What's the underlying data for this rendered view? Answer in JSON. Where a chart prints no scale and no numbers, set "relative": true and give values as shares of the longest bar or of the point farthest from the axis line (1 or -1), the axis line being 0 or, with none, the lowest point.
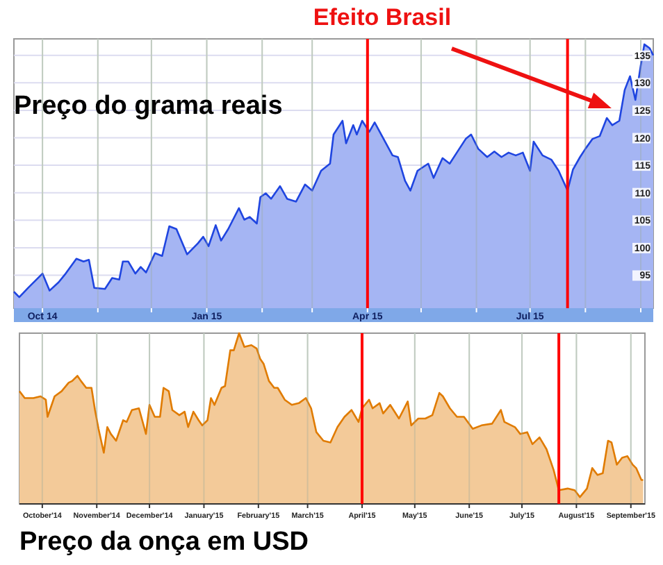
{
  "chart_data": [
    {
      "type": "area",
      "title": "Preço do grama reais",
      "xlim": [
        "2014-09-15",
        "2015-09-08"
      ],
      "ylim": [
        89,
        138
      ],
      "yticks": [
        95,
        100,
        105,
        110,
        115,
        120,
        125,
        130,
        135
      ],
      "xticks": [
        {
          "value": "2014-10-01",
          "label": "Oct 14"
        },
        {
          "value": "2014-11-01",
          "label": null
        },
        {
          "value": "2014-12-01",
          "label": null
        },
        {
          "value": "2015-01-01",
          "label": "Jan 15"
        },
        {
          "value": "2015-02-01",
          "label": null
        },
        {
          "value": "2015-03-01",
          "label": null
        },
        {
          "value": "2015-04-01",
          "label": "Apr 15"
        },
        {
          "value": "2015-05-01",
          "label": null
        },
        {
          "value": "2015-06-01",
          "label": null
        },
        {
          "value": "2015-07-01",
          "label": "Jul 15"
        },
        {
          "value": "2015-08-01",
          "label": null
        },
        {
          "value": "2015-09-01",
          "label": null
        }
      ],
      "grid": true,
      "series": [
        {
          "color": "#1f45e0",
          "x": [
            "2014-09-15",
            "2014-09-18",
            "2014-09-23",
            "2014-10-01",
            "2014-10-05",
            "2014-10-10",
            "2014-10-14",
            "2014-10-20",
            "2014-10-24",
            "2014-10-27",
            "2014-10-30",
            "2014-11-05",
            "2014-11-09",
            "2014-11-13",
            "2014-11-15",
            "2014-11-18",
            "2014-11-22",
            "2014-11-25",
            "2014-11-28",
            "2014-12-03",
            "2014-12-07",
            "2014-12-11",
            "2014-12-15",
            "2014-12-21",
            "2014-12-27",
            "2014-12-30",
            "2015-01-02",
            "2015-01-06",
            "2015-01-09",
            "2015-01-13",
            "2015-01-19",
            "2015-01-22",
            "2015-01-25",
            "2015-01-29",
            "2015-01-31",
            "2015-02-03",
            "2015-02-06",
            "2015-02-11",
            "2015-02-15",
            "2015-02-20",
            "2015-02-25",
            "2015-03-01",
            "2015-03-06",
            "2015-03-11",
            "2015-03-13",
            "2015-03-18",
            "2015-03-20",
            "2015-03-24",
            "2015-03-26",
            "2015-03-29",
            "2015-04-02",
            "2015-04-05",
            "2015-04-10",
            "2015-04-15",
            "2015-04-18",
            "2015-04-22",
            "2015-04-25",
            "2015-04-29",
            "2015-05-05",
            "2015-05-08",
            "2015-05-13",
            "2015-05-17",
            "2015-05-21",
            "2015-05-26",
            "2015-05-29",
            "2015-06-02",
            "2015-06-07",
            "2015-06-11",
            "2015-06-15",
            "2015-06-19",
            "2015-06-23",
            "2015-06-27",
            "2015-07-01",
            "2015-07-03",
            "2015-07-08",
            "2015-07-13",
            "2015-07-17",
            "2015-07-22",
            "2015-07-25",
            "2015-07-29",
            "2015-08-01",
            "2015-08-05",
            "2015-08-09",
            "2015-08-13",
            "2015-08-16",
            "2015-08-20",
            "2015-08-23",
            "2015-08-26",
            "2015-08-29",
            "2015-09-01",
            "2015-09-03",
            "2015-09-06",
            "2015-09-08"
          ],
          "values": [
            92,
            91,
            92.7,
            95.3,
            92.2,
            93.7,
            95.3,
            98,
            97.5,
            97.8,
            92.7,
            92.5,
            94.5,
            94.2,
            97.5,
            97.5,
            95.3,
            96.5,
            95.5,
            99,
            98.5,
            103.9,
            103.4,
            98.8,
            100.8,
            102,
            100.3,
            104.1,
            101.3,
            103.4,
            107.2,
            105.1,
            105.6,
            104.4,
            109.2,
            109.9,
            108.9,
            111.2,
            108.9,
            108.4,
            111.5,
            110.4,
            114,
            115.3,
            120.6,
            123.1,
            119,
            122.3,
            120.6,
            123.1,
            121.1,
            122.8,
            119.8,
            116.8,
            116.5,
            112.2,
            110.4,
            114,
            115.3,
            112.7,
            116.3,
            115.3,
            117.3,
            119.8,
            120.6,
            118,
            116.5,
            117.5,
            116.5,
            117.3,
            116.8,
            117.3,
            114,
            119.3,
            116.8,
            116,
            114,
            110.4,
            114.2,
            116.5,
            118,
            119.8,
            120.3,
            123.6,
            122.3,
            123.1,
            128.7,
            131.2,
            126.9,
            133.2,
            137,
            136.3,
            135
          ]
        }
      ],
      "ref_lines": [
        {
          "axis": "x",
          "value": "2015-04-01",
          "color": "#ff0000"
        },
        {
          "axis": "x",
          "value": "2015-07-22",
          "color": "#ff0000"
        }
      ],
      "annotations": [
        "Efeito Brasil"
      ]
    },
    {
      "type": "area",
      "title": "Preço da onça em USD",
      "relative": true,
      "xlim": [
        "2014-09-18",
        "2015-09-09"
      ],
      "xticks": [
        {
          "value": "2014-10-01",
          "label": "October'14"
        },
        {
          "value": "2014-11-01",
          "label": "November'14"
        },
        {
          "value": "2014-12-01",
          "label": "December'14"
        },
        {
          "value": "2015-01-01",
          "label": "January'15"
        },
        {
          "value": "2015-02-01",
          "label": "February'15"
        },
        {
          "value": "2015-03-01",
          "label": "March'15"
        },
        {
          "value": "2015-04-01",
          "label": "April'15"
        },
        {
          "value": "2015-05-01",
          "label": "May'15"
        },
        {
          "value": "2015-06-01",
          "label": "June'15"
        },
        {
          "value": "2015-07-01",
          "label": "July'15"
        },
        {
          "value": "2015-08-01",
          "label": "August'15"
        },
        {
          "value": "2015-09-01",
          "label": "September'15"
        }
      ],
      "grid": "x",
      "series": [
        {
          "color": "#e07b00",
          "x": [
            "2014-09-18",
            "2014-09-21",
            "2014-09-26",
            "2014-09-30",
            "2014-10-03",
            "2014-10-04",
            "2014-10-08",
            "2014-10-12",
            "2014-10-16",
            "2014-10-18",
            "2014-10-21",
            "2014-10-23",
            "2014-10-26",
            "2014-10-29",
            "2014-10-31",
            "2014-11-02",
            "2014-11-05",
            "2014-11-07",
            "2014-11-09",
            "2014-11-12",
            "2014-11-16",
            "2014-11-18",
            "2014-11-21",
            "2014-11-25",
            "2014-11-29",
            "2014-12-01",
            "2014-12-04",
            "2014-12-07",
            "2014-12-09",
            "2014-12-12",
            "2014-12-14",
            "2014-12-18",
            "2014-12-21",
            "2014-12-23",
            "2014-12-26",
            "2014-12-29",
            "2014-12-31",
            "2015-01-03",
            "2015-01-05",
            "2015-01-07",
            "2015-01-11",
            "2015-01-13",
            "2015-01-16",
            "2015-01-18",
            "2015-01-21",
            "2015-01-24",
            "2015-01-28",
            "2015-01-31",
            "2015-02-02",
            "2015-02-04",
            "2015-02-07",
            "2015-02-10",
            "2015-02-12",
            "2015-02-16",
            "2015-02-20",
            "2015-02-24",
            "2015-02-28",
            "2015-03-03",
            "2015-03-06",
            "2015-03-10",
            "2015-03-14",
            "2015-03-18",
            "2015-03-22",
            "2015-03-26",
            "2015-03-30",
            "2015-04-01",
            "2015-04-05",
            "2015-04-07",
            "2015-04-11",
            "2015-04-13",
            "2015-04-17",
            "2015-04-22",
            "2015-04-27",
            "2015-04-29",
            "2015-05-03",
            "2015-05-07",
            "2015-05-11",
            "2015-05-15",
            "2015-05-17",
            "2015-05-21",
            "2015-05-25",
            "2015-05-29",
            "2015-06-03",
            "2015-06-08",
            "2015-06-14",
            "2015-06-19",
            "2015-06-21",
            "2015-06-27",
            "2015-06-30",
            "2015-07-04",
            "2015-07-07",
            "2015-07-11",
            "2015-07-15",
            "2015-07-19",
            "2015-07-22",
            "2015-07-27",
            "2015-07-31",
            "2015-08-03",
            "2015-08-07",
            "2015-08-10",
            "2015-08-13",
            "2015-08-16",
            "2015-08-19",
            "2015-08-21",
            "2015-08-24",
            "2015-08-27",
            "2015-08-30",
            "2015-09-02",
            "2015-09-04",
            "2015-09-07",
            "2015-09-08"
          ],
          "values": [
            0.66,
            0.62,
            0.62,
            0.63,
            0.61,
            0.51,
            0.63,
            0.66,
            0.71,
            0.72,
            0.75,
            0.72,
            0.68,
            0.68,
            0.55,
            0.44,
            0.3,
            0.45,
            0.41,
            0.37,
            0.49,
            0.48,
            0.55,
            0.56,
            0.41,
            0.58,
            0.51,
            0.51,
            0.68,
            0.66,
            0.55,
            0.52,
            0.54,
            0.45,
            0.54,
            0.49,
            0.46,
            0.49,
            0.62,
            0.58,
            0.68,
            0.69,
            0.9,
            0.9,
            1,
            0.92,
            0.93,
            0.91,
            0.85,
            0.82,
            0.72,
            0.68,
            0.68,
            0.61,
            0.58,
            0.59,
            0.62,
            0.56,
            0.42,
            0.37,
            0.36,
            0.45,
            0.51,
            0.55,
            0.48,
            0.56,
            0.61,
            0.56,
            0.59,
            0.53,
            0.58,
            0.5,
            0.6,
            0.46,
            0.5,
            0.5,
            0.52,
            0.65,
            0.63,
            0.56,
            0.51,
            0.51,
            0.44,
            0.46,
            0.47,
            0.55,
            0.48,
            0.45,
            0.41,
            0.42,
            0.35,
            0.39,
            0.32,
            0.2,
            0.08,
            0.09,
            0.08,
            0.04,
            0.09,
            0.21,
            0.17,
            0.18,
            0.37,
            0.36,
            0.23,
            0.27,
            0.28,
            0.23,
            0.21,
            0.14,
            0.14
          ]
        }
      ],
      "ref_lines": [
        {
          "axis": "x",
          "value": "2015-04-01",
          "color": "#ff0000"
        },
        {
          "axis": "x",
          "value": "2015-07-22",
          "color": "#ff0000"
        }
      ]
    }
  ]
}
